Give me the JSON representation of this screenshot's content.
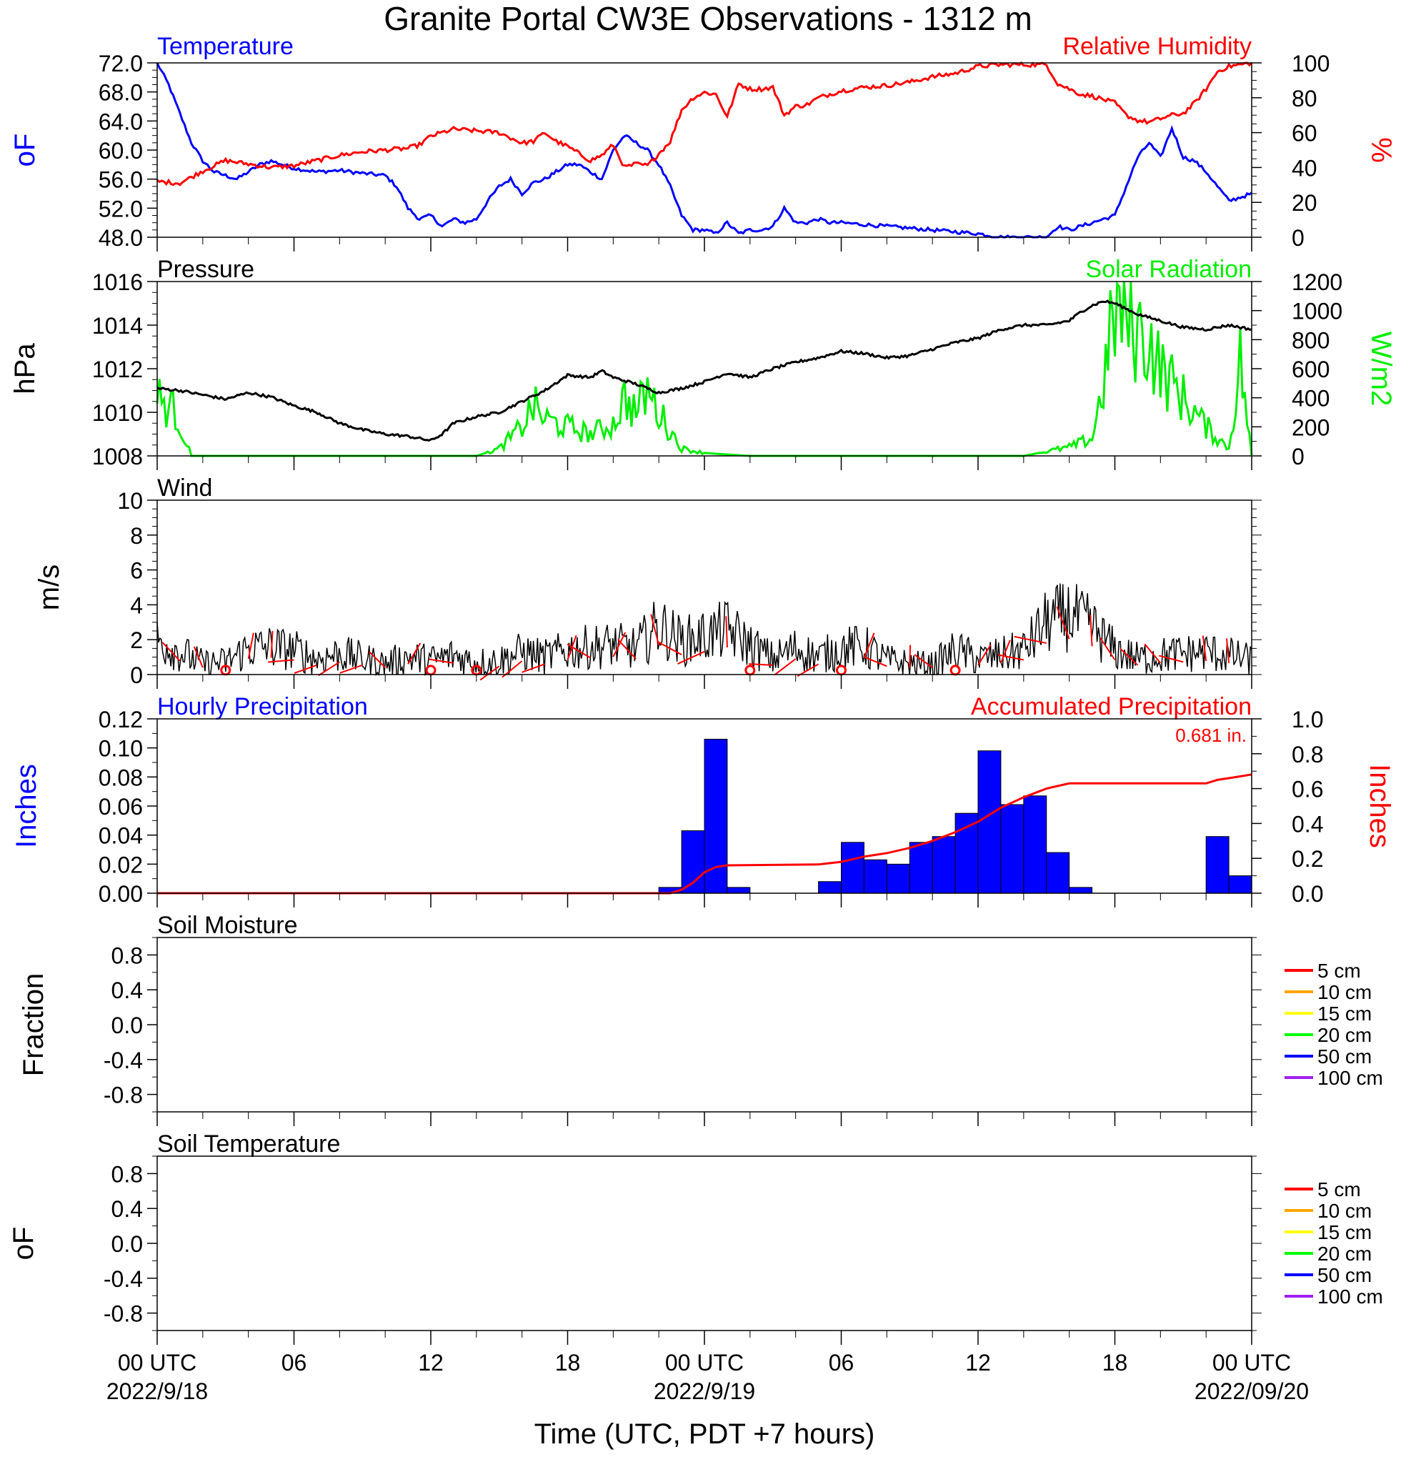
{
  "title": "Granite Portal CW3E Observations - 1312 m",
  "xaxis": {
    "ticks": [
      {
        "h": 0,
        "label": "00 UTC",
        "date": "2022/9/18"
      },
      {
        "h": 6,
        "label": "06",
        "date": ""
      },
      {
        "h": 12,
        "label": "12",
        "date": ""
      },
      {
        "h": 18,
        "label": "18",
        "date": ""
      },
      {
        "h": 24,
        "label": "00 UTC",
        "date": "2022/9/19"
      },
      {
        "h": 30,
        "label": "06",
        "date": ""
      },
      {
        "h": 36,
        "label": "12",
        "date": ""
      },
      {
        "h": 42,
        "label": "18",
        "date": ""
      },
      {
        "h": 48,
        "label": "00 UTC",
        "date": "2022/09/20"
      }
    ],
    "title": "Time (UTC, PDT +7 hours)"
  },
  "colors": {
    "temperature": "#0000ff",
    "humidity": "#ff0000",
    "pressure": "#000000",
    "solar": "#00ee00",
    "wind": "#000000",
    "barb": "#ff0000",
    "precip_bar": "#0000ff",
    "precip_acc": "#ff0000"
  },
  "panels": {
    "temp": {
      "left_title": "Temperature",
      "right_title": "Relative Humidity",
      "left_unit": "oF",
      "right_unit": "%"
    },
    "pres": {
      "left_title": "Pressure",
      "right_title": "Solar Radiation",
      "left_unit": "hPa",
      "right_unit": "W/m2"
    },
    "wind": {
      "left_title": "Wind",
      "left_unit": "m/s"
    },
    "precip": {
      "left_title": "Hourly Precipitation",
      "right_title": "Accumulated Precipitation",
      "total": "0.681 in.",
      "left_unit": "Inches",
      "right_unit": "Inches"
    },
    "soilm": {
      "left_title": "Soil Moisture",
      "left_unit": "Fraction"
    },
    "soilt": {
      "left_title": "Soil Temperature",
      "left_unit": "oF"
    }
  },
  "legend_depths": [
    {
      "label": "5 cm",
      "color": "#ff0000"
    },
    {
      "label": "10 cm",
      "color": "#ffa500"
    },
    {
      "label": "15 cm",
      "color": "#ffff00"
    },
    {
      "label": "20 cm",
      "color": "#00ff00"
    },
    {
      "label": "50 cm",
      "color": "#0000ff"
    },
    {
      "label": "100 cm",
      "color": "#a020f0"
    }
  ],
  "chart_data": [
    {
      "type": "line",
      "x_unit": "hours since 2022-09-18 00 UTC",
      "series": [
        {
          "name": "Temperature",
          "axis": "left",
          "x": [
            0,
            0.5,
            1,
            1.5,
            2,
            2.5,
            3,
            3.5,
            4,
            4.5,
            5,
            5.5,
            6,
            7,
            8,
            9,
            10,
            10.5,
            11,
            11.5,
            12,
            12.5,
            13,
            13.5,
            14,
            14.5,
            15,
            15.5,
            16,
            16.5,
            17,
            17.5,
            18,
            18.5,
            19,
            19.5,
            20,
            20.5,
            21,
            21.5,
            22,
            22.5,
            23,
            23.5,
            24,
            24.5,
            25,
            25.5,
            26,
            26.5,
            27,
            27.5,
            28,
            28.5,
            29,
            29.5,
            30,
            32,
            34,
            36,
            37,
            38,
            39,
            39.5,
            40,
            40.5,
            41,
            41.5,
            42,
            42.5,
            43,
            43.5,
            44,
            44.5,
            45,
            45.5,
            46,
            46.5,
            47,
            47.5,
            48
          ],
          "values": [
            72,
            69,
            65,
            61,
            58.5,
            57,
            56.5,
            56,
            57,
            58,
            58.5,
            58,
            57.5,
            57,
            57.2,
            56.8,
            56.5,
            55,
            52,
            50.5,
            51,
            49.5,
            50.5,
            50,
            50.5,
            53,
            55,
            56,
            54,
            55.5,
            56,
            57,
            58,
            58,
            57,
            56,
            60,
            62,
            61,
            60,
            58,
            55,
            51,
            49,
            49,
            48.5,
            50,
            48.5,
            49,
            49,
            49.5,
            52,
            50,
            50,
            50.5,
            50,
            50,
            49.5,
            49,
            48.5,
            48,
            48,
            48,
            49.5,
            49,
            49.5,
            50,
            50.5,
            51,
            55,
            59,
            61,
            59,
            63,
            59,
            58.5,
            57,
            55,
            53,
            53.5,
            54
          ]
        },
        {
          "name": "Relative Humidity",
          "axis": "right",
          "x": [
            0,
            1,
            2,
            3,
            4,
            5,
            6,
            7,
            8,
            9,
            10,
            11,
            11.5,
            12,
            13,
            14,
            15,
            16,
            16.5,
            17,
            17.5,
            18,
            18.5,
            19,
            19.5,
            20,
            20.5,
            21,
            21.5,
            22,
            22.5,
            23,
            23.5,
            24,
            24.5,
            25,
            25.5,
            26,
            26.5,
            27,
            27.5,
            28,
            28.5,
            29,
            29.5,
            30,
            31,
            32,
            33,
            34,
            35,
            36,
            37,
            38,
            38.5,
            39,
            39.5,
            40,
            40.5,
            41,
            41.5,
            42,
            42.5,
            43,
            43.5,
            44,
            44.5,
            45,
            45.5,
            46,
            46.5,
            47,
            47.5,
            48
          ],
          "values": [
            32,
            31,
            38,
            44,
            42,
            40,
            41,
            44,
            47,
            49,
            50,
            51,
            53,
            58,
            62,
            61,
            60,
            54,
            55,
            60,
            55,
            52,
            48,
            44,
            47,
            53,
            40,
            42,
            41,
            48,
            55,
            73,
            80,
            83,
            82,
            69,
            88,
            85,
            85,
            86,
            70,
            75,
            76,
            80,
            82,
            84,
            86,
            87,
            89,
            92,
            94,
            98,
            99,
            99,
            99,
            99,
            88,
            85,
            82,
            81,
            79,
            77,
            70,
            67,
            66,
            68,
            70,
            71,
            77,
            85,
            95,
            98,
            99,
            100
          ]
        },
        {
          "name": "Pressure",
          "axis": "left",
          "x": [
            0,
            1,
            2,
            3,
            4,
            5,
            6,
            7,
            8,
            9,
            10,
            11,
            12,
            12.5,
            13,
            14,
            15,
            16,
            17,
            18,
            19,
            19.5,
            20,
            21,
            22,
            23,
            24,
            25,
            26,
            27,
            28,
            29,
            30,
            31,
            32,
            33,
            34,
            35,
            36,
            37,
            38,
            39,
            40,
            40.5,
            41,
            41.5,
            42,
            43,
            44,
            45,
            46,
            47,
            48
          ],
          "values": [
            1011.1,
            1011,
            1010.8,
            1010.6,
            1010.9,
            1010.7,
            1010.3,
            1010,
            1009.5,
            1009.2,
            1009,
            1008.9,
            1008.7,
            1009,
            1009.5,
            1009.8,
            1010,
            1010.5,
            1011,
            1011.7,
            1011.6,
            1011.9,
            1011.6,
            1011.3,
            1010.9,
            1011.1,
            1011.4,
            1011.8,
            1011.6,
            1012,
            1012.3,
            1012.5,
            1012.8,
            1012.7,
            1012.5,
            1012.6,
            1012.9,
            1013.2,
            1013.4,
            1013.8,
            1014,
            1014,
            1014.2,
            1014.6,
            1014.9,
            1015.1,
            1015,
            1014.5,
            1014.2,
            1013.9,
            1013.8,
            1014,
            1013.8
          ]
        },
        {
          "name": "Solar Radiation",
          "axis": "right",
          "x": [
            0,
            0.8,
            1.5,
            14,
            15,
            16,
            16.5,
            17,
            18,
            19,
            20,
            20.5,
            21,
            21.5,
            22,
            23,
            24,
            26,
            38,
            40,
            41,
            41.5,
            42,
            42.5,
            43,
            43.5,
            44,
            45,
            46,
            47,
            47.5,
            48
          ],
          "values": [
            400,
            300,
            0,
            0,
            50,
            200,
            350,
            250,
            200,
            150,
            220,
            400,
            300,
            450,
            300,
            50,
            20,
            0,
            0,
            60,
            120,
            500,
            1000,
            950,
            850,
            800,
            600,
            400,
            200,
            50,
            650,
            0
          ]
        },
        {
          "name": "Wind Speed",
          "x": [
            0,
            1,
            2,
            3,
            4,
            5,
            6,
            7,
            8,
            9,
            10,
            11,
            12,
            13,
            14,
            15,
            16,
            17,
            18,
            19,
            20,
            21,
            22,
            23,
            24,
            25,
            26,
            27,
            28,
            29,
            30,
            31,
            32,
            33,
            34,
            35,
            36,
            37,
            38,
            39,
            40,
            41,
            42,
            43,
            44,
            45,
            46,
            47,
            48
          ],
          "values": [
            2,
            1.3,
            0.6,
            0.7,
            1.5,
            1.6,
            1.4,
            0.9,
            1.2,
            0.9,
            0.6,
            1.0,
            0.8,
            1.1,
            0.7,
            0.8,
            1.3,
            1.0,
            1.4,
            1.6,
            1.7,
            1.5,
            2.8,
            1.9,
            2.2,
            2.6,
            1.7,
            0.9,
            1.5,
            1.0,
            1.5,
            1.6,
            0.8,
            0.6,
            0.5,
            1.4,
            0.9,
            1.1,
            1.4,
            3.0,
            3.4,
            2.7,
            1.4,
            0.9,
            1.1,
            1.2,
            1.3,
            1.1,
            0.8
          ]
        }
      ]
    },
    {
      "type": "bar",
      "x_unit": "hours since 2022-09-18 00 UTC",
      "series": [
        {
          "name": "Hourly Precipitation",
          "x": [
            22,
            23,
            24,
            25,
            29,
            30,
            31,
            32,
            33,
            34,
            35,
            36,
            37,
            38,
            39,
            40,
            46,
            47
          ],
          "values": [
            0.004,
            0.043,
            0.106,
            0.004,
            0.008,
            0.035,
            0.023,
            0.02,
            0.035,
            0.039,
            0.055,
            0.098,
            0.061,
            0.067,
            0.028,
            0.004,
            0.039,
            0.012
          ]
        },
        {
          "name": "Accumulated Precipitation",
          "x": [
            0,
            22.5,
            23,
            23.5,
            24,
            24.5,
            25,
            29,
            30,
            31,
            32,
            33,
            34,
            35,
            36,
            37,
            38,
            39,
            40,
            46,
            46.5,
            47,
            47.5,
            48
          ],
          "values": [
            0,
            0,
            0.02,
            0.06,
            0.12,
            0.15,
            0.16,
            0.165,
            0.18,
            0.21,
            0.23,
            0.26,
            0.3,
            0.35,
            0.41,
            0.49,
            0.55,
            0.6,
            0.63,
            0.63,
            0.65,
            0.66,
            0.67,
            0.681
          ]
        }
      ]
    }
  ]
}
